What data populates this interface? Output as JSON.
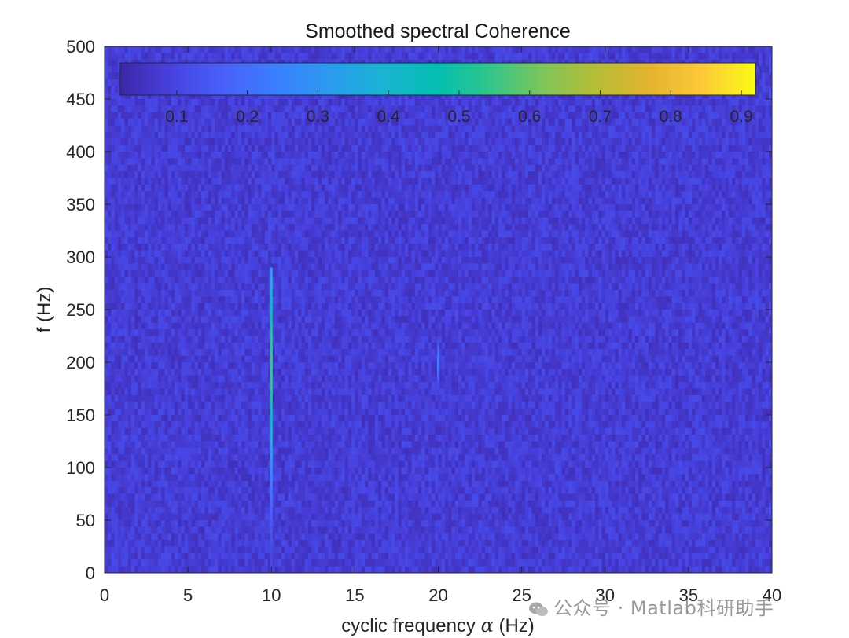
{
  "chart_data": {
    "type": "heatmap",
    "title": "Smoothed spectral Coherence",
    "xlabel": "cyclic frequency α (Hz)",
    "xlabel_text": "cyclic frequency",
    "xlabel_symbol": "α",
    "xlabel_unit": "(Hz)",
    "ylabel": "f (Hz)",
    "xlim": [
      0,
      40
    ],
    "ylim": [
      0,
      500
    ],
    "xticks": [
      0,
      5,
      10,
      15,
      20,
      25,
      30,
      35,
      40
    ],
    "yticks": [
      0,
      50,
      100,
      150,
      200,
      250,
      300,
      350,
      400,
      450,
      500
    ],
    "colormap": "parula",
    "background_coherence": 0.08,
    "colorbar": {
      "location": "north",
      "ticks": [
        0.1,
        0.2,
        0.3,
        0.4,
        0.5,
        0.6,
        0.7,
        0.8,
        0.9
      ],
      "range": [
        0.02,
        0.92
      ]
    },
    "features": [
      {
        "name": "cyclic-line-10hz",
        "alpha": 10,
        "f_range": [
          0,
          290
        ],
        "peak_f": 200,
        "peak_value": 0.55
      },
      {
        "name": "cyclic-line-20hz",
        "alpha": 20,
        "f_range": [
          170,
          225
        ],
        "peak_f": 200,
        "peak_value": 0.25
      }
    ]
  },
  "colors": {
    "parula": [
      "#3e26a8",
      "#4743e1",
      "#4862fa",
      "#3a80fe",
      "#2a9cee",
      "#1ab4d3",
      "#02bfb0",
      "#32c68a",
      "#80c559",
      "#b6bd36",
      "#e4b42f",
      "#fec939",
      "#f9fb15"
    ],
    "background_cell": "#3f41d4"
  },
  "watermark": {
    "text": "公众号 · Matlab科研助手",
    "icon": "wechat-icon"
  }
}
